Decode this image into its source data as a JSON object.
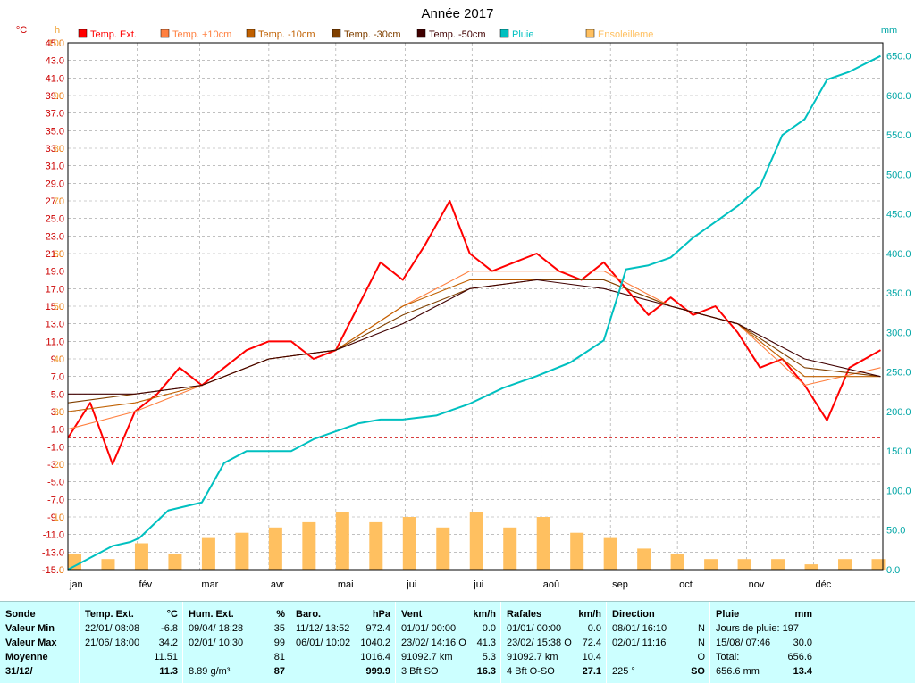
{
  "chart_data": {
    "type": "line",
    "title": "Année 2017",
    "axis_left": {
      "unit": "°C",
      "ylim": [
        -15,
        45
      ],
      "ticks": [
        "45.0",
        "43.0",
        "41.0",
        "39.0",
        "37.0",
        "35.0",
        "33.0",
        "31.0",
        "29.0",
        "27.0",
        "25.0",
        "23.0",
        "21.0",
        "19.0",
        "17.0",
        "15.0",
        "13.0",
        "11.0",
        "9.0",
        "7.0",
        "5.0",
        "3.0",
        "1.0",
        "-1.0",
        "-3.0",
        "-5.0",
        "-7.0",
        "-9.0",
        "-11.0",
        "-13.0",
        "-15.0"
      ]
    },
    "axis_sun": {
      "unit": "h",
      "ylim": [
        0,
        100
      ],
      "ticks": [
        "100",
        "90",
        "80",
        "70",
        "60",
        "50",
        "40",
        "30",
        "20",
        "10",
        "0"
      ]
    },
    "axis_right": {
      "unit": "mm",
      "ylim": [
        0,
        666.6
      ],
      "ticks": [
        "650.0",
        "600.0",
        "550.0",
        "500.0",
        "450.0",
        "400.0",
        "350.0",
        "300.0",
        "250.0",
        "200.0",
        "150.0",
        "100.0",
        "50.0",
        "0.0"
      ]
    },
    "x_months": [
      "jan",
      "fév",
      "mar",
      "avr",
      "mai",
      "jui",
      "jui",
      "aoû",
      "sep",
      "oct",
      "nov",
      "déc"
    ],
    "legend": [
      {
        "label": "Temp. Ext.",
        "color": "#ff0000"
      },
      {
        "label": "Temp. +10cm",
        "color": "#ff8040"
      },
      {
        "label": "Temp. -10cm",
        "color": "#c06000"
      },
      {
        "label": "Temp. -30cm",
        "color": "#804000"
      },
      {
        "label": "Temp. -50cm",
        "color": "#400000"
      },
      {
        "label": "Pluie",
        "color": "#00c0c0"
      },
      {
        "label": "Ensoleilleme",
        "color": "#ffc060"
      }
    ],
    "series": [
      {
        "name": "Temp. Ext.",
        "color": "#ff0000",
        "x": [
          0,
          10,
          20,
          30,
          40,
          50,
          60,
          70,
          80,
          90,
          100,
          110,
          120,
          130,
          140,
          150,
          160,
          171,
          180,
          190,
          200,
          210,
          220,
          230,
          240,
          250,
          260,
          270,
          280,
          290,
          300,
          310,
          320,
          330,
          340,
          350,
          364
        ],
        "y": [
          0,
          4,
          -3,
          3,
          5,
          8,
          6,
          8,
          10,
          11,
          11,
          9,
          10,
          15,
          20,
          18,
          22,
          27,
          21,
          19,
          20,
          21,
          19,
          18,
          20,
          17,
          14,
          16,
          14,
          15,
          12,
          8,
          9,
          6,
          2,
          8,
          10
        ]
      },
      {
        "name": "Temp. +10cm",
        "color": "#ff8040",
        "x": [
          0,
          30,
          60,
          90,
          120,
          150,
          180,
          210,
          240,
          270,
          300,
          330,
          364
        ],
        "y": [
          1,
          3,
          6,
          9,
          10,
          15,
          19,
          19,
          19,
          15,
          13,
          6,
          8
        ]
      },
      {
        "name": "Temp. -10cm",
        "color": "#c06000",
        "x": [
          0,
          30,
          60,
          90,
          120,
          150,
          180,
          210,
          240,
          270,
          300,
          330,
          364
        ],
        "y": [
          3,
          4,
          6,
          9,
          10,
          15,
          18,
          18,
          18,
          15,
          13,
          7,
          7
        ]
      },
      {
        "name": "Temp. -30cm",
        "color": "#804000",
        "x": [
          0,
          30,
          60,
          90,
          120,
          150,
          180,
          210,
          240,
          270,
          300,
          330,
          364
        ],
        "y": [
          4,
          5,
          6,
          9,
          10,
          14,
          17,
          18,
          18,
          15,
          13,
          8,
          7
        ]
      },
      {
        "name": "Temp. -50cm",
        "color": "#400000",
        "x": [
          0,
          30,
          60,
          90,
          120,
          150,
          180,
          210,
          240,
          270,
          300,
          330,
          364
        ],
        "y": [
          5,
          5,
          6,
          9,
          10,
          13,
          17,
          18,
          17,
          15,
          13,
          9,
          7
        ]
      },
      {
        "name": "Pluie",
        "color": "#00c0c0",
        "axis": "right",
        "x": [
          0,
          20,
          28,
          32,
          45,
          60,
          70,
          80,
          90,
          100,
          110,
          120,
          130,
          140,
          150,
          165,
          180,
          195,
          210,
          225,
          240,
          250,
          260,
          270,
          280,
          290,
          300,
          310,
          320,
          330,
          340,
          350,
          364
        ],
        "y": [
          0,
          30,
          35,
          40,
          75,
          85,
          135,
          150,
          150,
          150,
          165,
          175,
          185,
          190,
          190,
          195,
          210,
          230,
          245,
          262,
          290,
          380,
          385,
          395,
          420,
          440,
          460,
          485,
          550,
          570,
          620,
          630,
          650
        ]
      },
      {
        "name": "Ensoleilleme",
        "color": "#ffc060",
        "axis": "sun",
        "type": "bar",
        "x": [
          0,
          15,
          30,
          45,
          60,
          75,
          90,
          105,
          120,
          135,
          150,
          165,
          180,
          195,
          210,
          225,
          240,
          255,
          270,
          285,
          300,
          315,
          330,
          345,
          360
        ],
        "y": [
          3,
          2,
          5,
          3,
          6,
          7,
          8,
          9,
          11,
          9,
          10,
          8,
          11,
          8,
          10,
          7,
          6,
          4,
          3,
          2,
          2,
          2,
          1,
          2,
          2
        ]
      }
    ]
  },
  "stats": {
    "sonde": {
      "header": "Sonde",
      "rows": [
        "Valeur Min",
        "Valeur Max",
        "Moyenne",
        "31/12/"
      ]
    },
    "temp": {
      "header": "Temp. Ext.",
      "unit": "°C",
      "rows": [
        [
          "22/01/ 08:08",
          "-6.8"
        ],
        [
          "21/06/ 18:00",
          "34.2"
        ],
        [
          "",
          "11.51"
        ],
        [
          "",
          "11.3"
        ]
      ]
    },
    "hum": {
      "header": "Hum. Ext.",
      "unit": "%",
      "rows": [
        [
          "09/04/ 18:28",
          "35"
        ],
        [
          "02/01/ 10:30",
          "99"
        ],
        [
          "",
          "81"
        ],
        [
          "8.89 g/m³",
          "87"
        ]
      ]
    },
    "baro": {
      "header": "Baro.",
      "unit": "hPa",
      "rows": [
        [
          "11/12/ 13:52",
          "972.4"
        ],
        [
          "06/01/ 10:02",
          "1040.2"
        ],
        [
          "",
          "1016.4"
        ],
        [
          "",
          "999.9"
        ]
      ]
    },
    "vent": {
      "header": "Vent",
      "unit": "km/h",
      "rows": [
        [
          "01/01/ 00:00",
          "0.0"
        ],
        [
          "23/02/ 14:16 O",
          "41.3"
        ],
        [
          "91092.7 km",
          "5.3"
        ],
        [
          "3 Bft SO",
          "16.3"
        ]
      ]
    },
    "rafales": {
      "header": "Rafales",
      "unit": "km/h",
      "rows": [
        [
          "01/01/ 00:00",
          "0.0"
        ],
        [
          "23/02/ 15:38 O",
          "72.4"
        ],
        [
          "91092.7 km",
          "10.4"
        ],
        [
          "4 Bft O-SO",
          "27.1"
        ]
      ]
    },
    "direction": {
      "header": "Direction",
      "unit": "",
      "rows": [
        [
          "08/01/ 16:10",
          "N"
        ],
        [
          "02/01/ 11:16",
          "N"
        ],
        [
          "",
          "O"
        ],
        [
          "225 °",
          "SO"
        ]
      ]
    },
    "pluie": {
      "header": "Pluie",
      "unit": "mm",
      "rows": [
        [
          "Jours de pluie: 197",
          ""
        ],
        [
          "15/08/ 07:46",
          "30.0"
        ],
        [
          "Total:",
          "656.6"
        ],
        [
          "656.6 mm",
          "13.4"
        ]
      ]
    }
  }
}
